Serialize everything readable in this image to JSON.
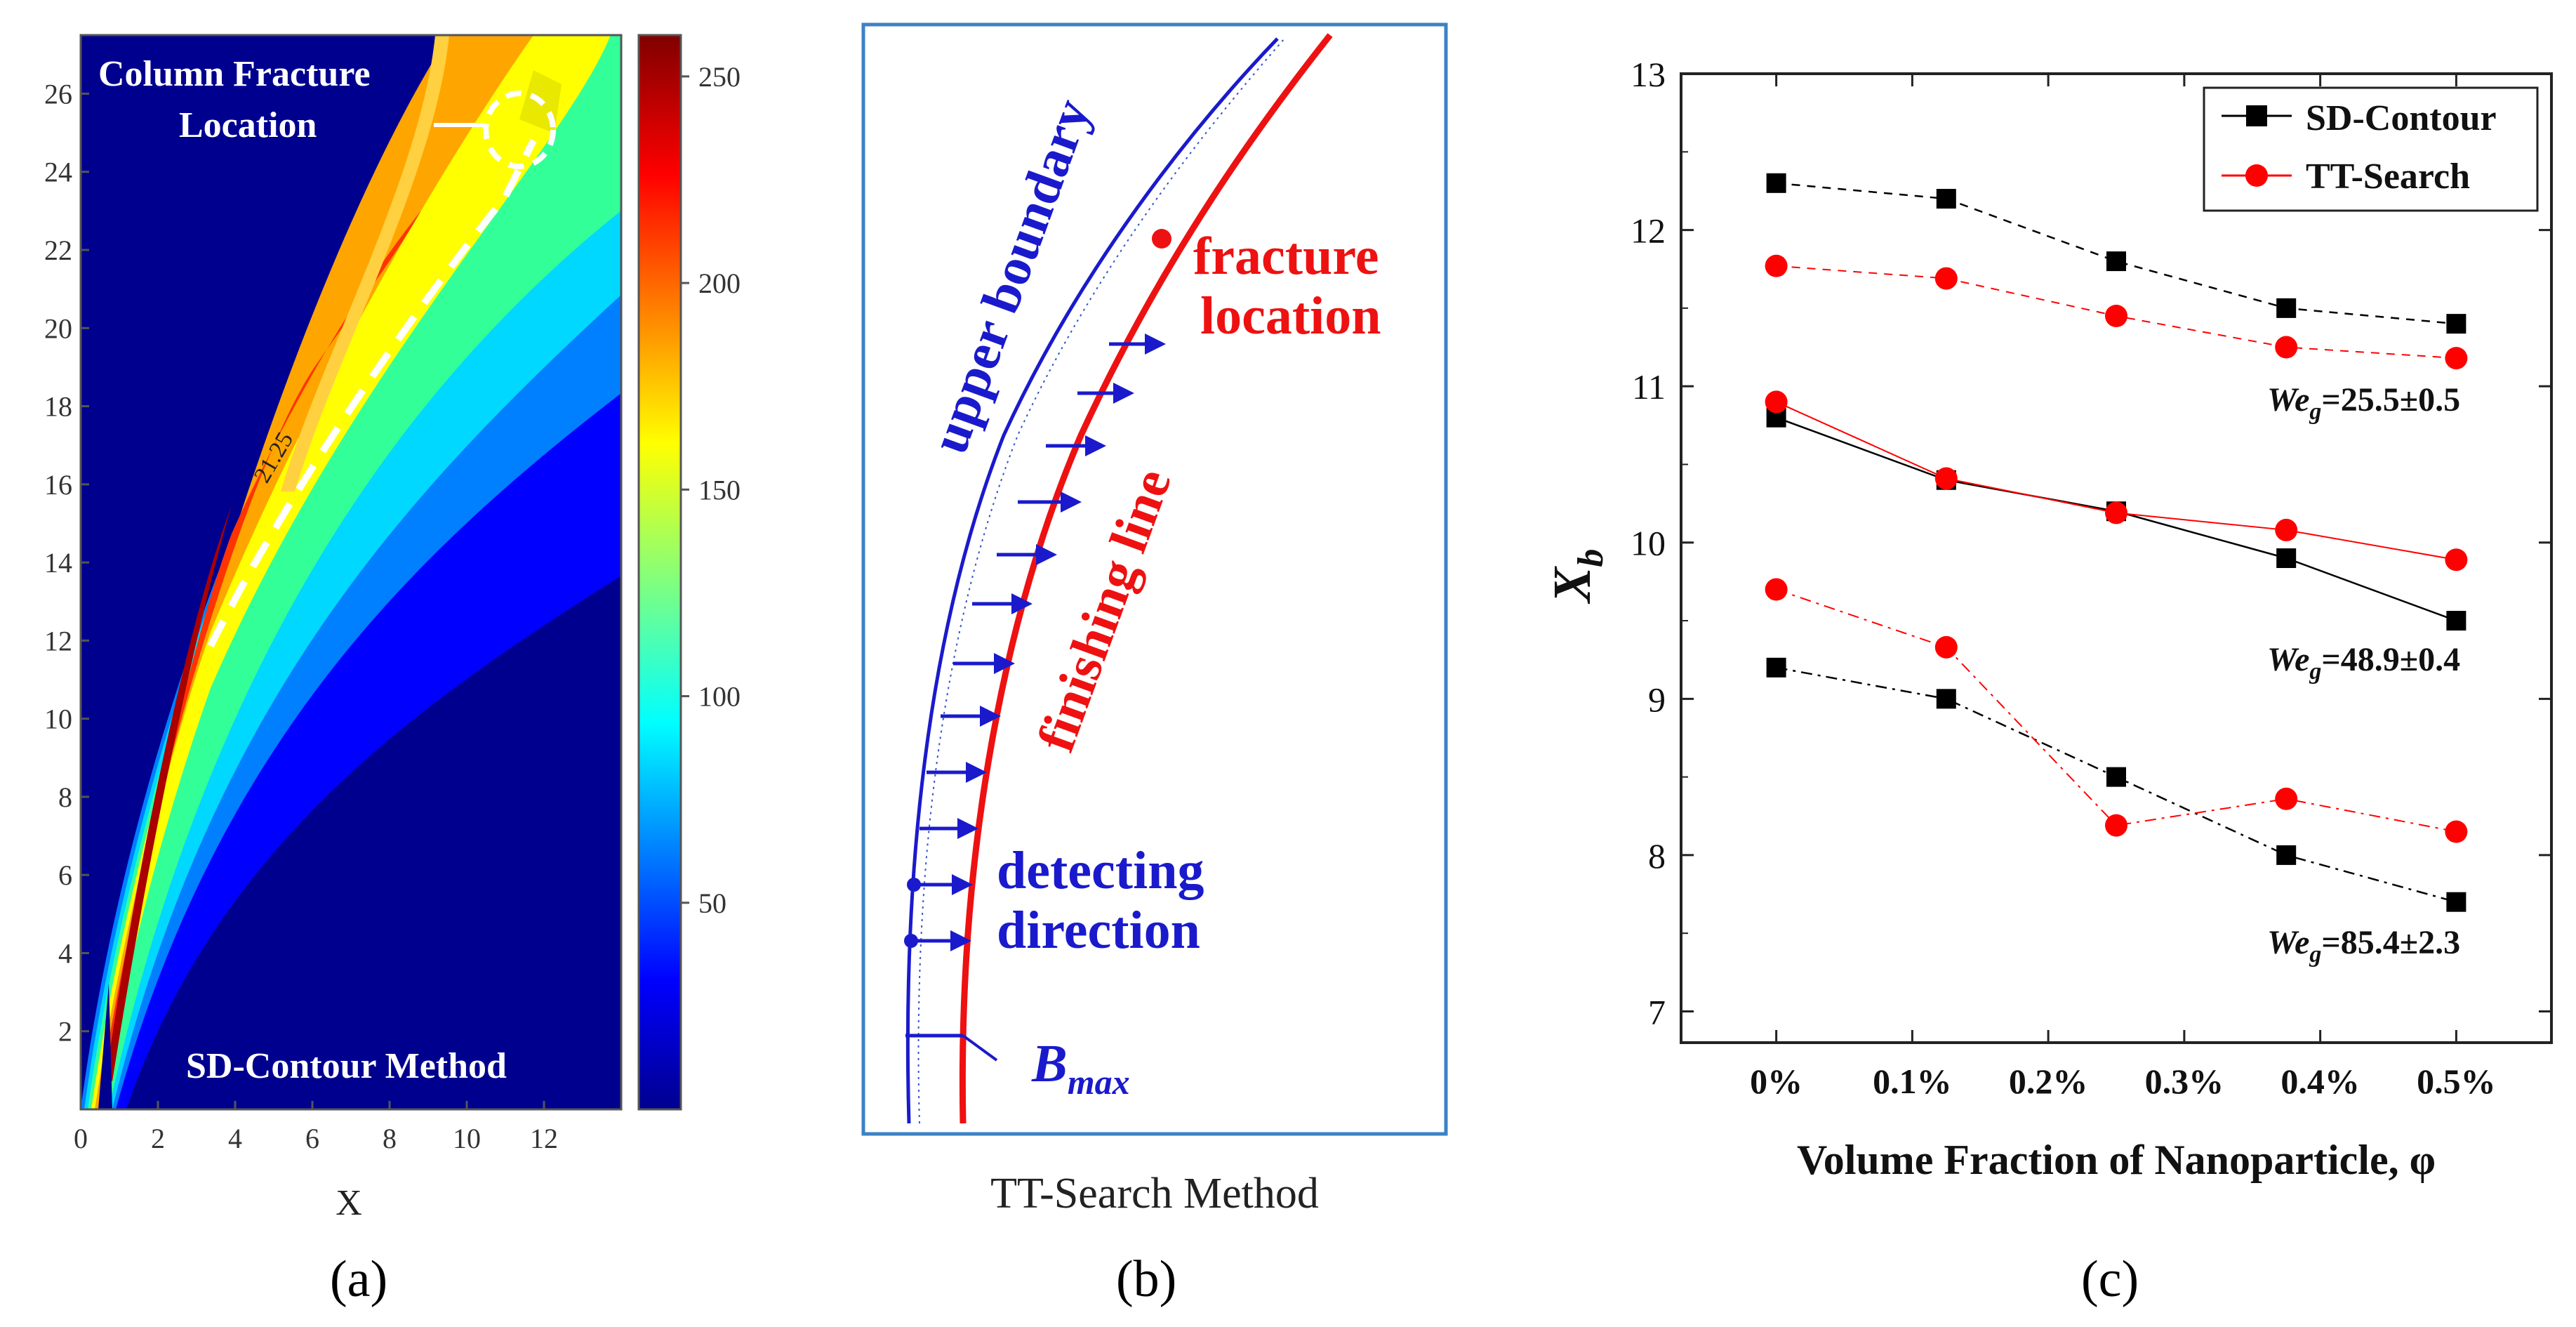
{
  "panels": {
    "a": {
      "label": "(a)",
      "title_line1": "Column Fracture",
      "title_line2": "Location",
      "method": "SD-Contour Method",
      "contour_annotation": "21.25",
      "xlabel": "X",
      "x_ticks": [
        "0",
        "2",
        "4",
        "6",
        "8",
        "10",
        "12"
      ],
      "y_ticks": [
        "2",
        "4",
        "6",
        "8",
        "10",
        "12",
        "14",
        "16",
        "18",
        "20",
        "22",
        "24",
        "26"
      ],
      "colorbar_ticks": [
        "50",
        "100",
        "150",
        "200",
        "250"
      ],
      "colors": {
        "background": "#00008f",
        "text": "#ffffff",
        "dash": "#ffffff"
      }
    },
    "b": {
      "label": "(b)",
      "caption": "TT-Search Method",
      "upper_boundary": "upper boundary",
      "finishing_line": "finishing line",
      "fracture_1": "fracture",
      "fracture_2": "location",
      "detecting_1": "detecting",
      "detecting_2": "direction",
      "bmax_main": "B",
      "bmax_sub": "max",
      "colors": {
        "blue": "#1a1acc",
        "red": "#ee1111",
        "frame": "#3b82c4"
      }
    },
    "c": {
      "label": "(c)",
      "legend": [
        "SD-Contour",
        "TT-Search"
      ],
      "annotations": [
        {
          "main": "We",
          "sub": "g",
          "rest": "=25.5±0.5"
        },
        {
          "main": "We",
          "sub": "g",
          "rest": "=48.9±0.4"
        },
        {
          "main": "We",
          "sub": "g",
          "rest": "=85.4±2.3"
        }
      ]
    }
  },
  "chart_data": {
    "type": "line",
    "title": "",
    "xlabel": "Volume Fraction of Nanoparticle, φ",
    "ylabel_main": "X",
    "ylabel_sub": "b",
    "categories": [
      "0%",
      "0.1%",
      "0.2%",
      "0.3%",
      "0.4%",
      "0.5%"
    ],
    "x": [
      0,
      0.125,
      0.25,
      0.375,
      0.5
    ],
    "xlim": [
      -0.07,
      0.57
    ],
    "ylim": [
      6.8,
      13
    ],
    "y_ticks": [
      7,
      8,
      9,
      10,
      11,
      12,
      13
    ],
    "series": [
      {
        "name": "SD-Contour",
        "group": "Weg=25.5±0.5",
        "color": "#000000",
        "marker": "square",
        "dash": "dash",
        "values": [
          12.3,
          12.2,
          11.8,
          11.5,
          11.4
        ]
      },
      {
        "name": "TT-Search",
        "group": "Weg=25.5±0.5",
        "color": "#ff0000",
        "marker": "circle",
        "dash": "dash",
        "values": [
          11.77,
          11.69,
          11.45,
          11.25,
          11.18
        ]
      },
      {
        "name": "SD-Contour",
        "group": "Weg=48.9±0.4",
        "color": "#000000",
        "marker": "square",
        "dash": "solid",
        "values": [
          10.8,
          10.4,
          10.2,
          9.9,
          9.5
        ]
      },
      {
        "name": "TT-Search",
        "group": "Weg=48.9±0.4",
        "color": "#ff0000",
        "marker": "circle",
        "dash": "solid",
        "values": [
          10.9,
          10.41,
          10.19,
          10.08,
          9.89
        ]
      },
      {
        "name": "SD-Contour",
        "group": "Weg=85.4±2.3",
        "color": "#000000",
        "marker": "square",
        "dash": "dashdot",
        "values": [
          9.2,
          9.0,
          8.5,
          8.0,
          7.7
        ]
      },
      {
        "name": "TT-Search",
        "group": "Weg=85.4±2.3",
        "color": "#ff0000",
        "marker": "circle",
        "dash": "dashdot",
        "values": [
          9.7,
          9.33,
          8.19,
          8.36,
          8.15
        ]
      }
    ]
  }
}
